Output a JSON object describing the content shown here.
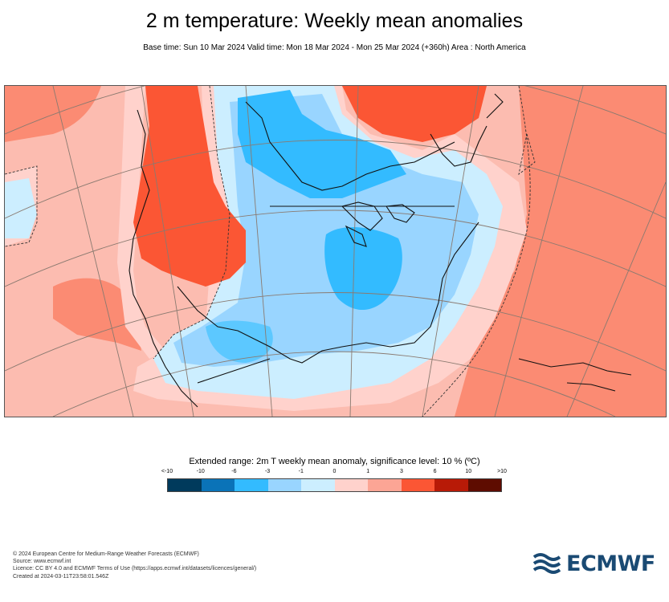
{
  "header": {
    "title": "2 m temperature: Weekly mean anomalies",
    "subtitle": "Base time: Sun 10 Mar 2024 Valid time: Mon 18 Mar 2024 - Mon 25 Mar 2024 (+360h) Area : North America"
  },
  "legend": {
    "title": "Extended range: 2m T weekly mean anomaly, significance level: 10 % (ºC)",
    "ticks": [
      "<-10",
      "-10",
      "-6",
      "-3",
      "-1",
      "0",
      "1",
      "3",
      "6",
      "10",
      ">10"
    ],
    "colors": [
      "#003a5c",
      "#0a73b8",
      "#33bbff",
      "#99d5ff",
      "#cceeff",
      "#ffd2cc",
      "#fca595",
      "#fb5634",
      "#b81a07",
      "#5e0c00"
    ]
  },
  "map_colors": {
    "ocean_warm": "#fcbcb0",
    "warm_strong": "#fb8b73",
    "hot": "#fb5634",
    "light_warm": "#ffd2cc",
    "light_cool": "#cceeff",
    "cool": "#99d5ff",
    "cold": "#33bbff",
    "coast": "#111111",
    "grid": "#8a7a70"
  },
  "footer": {
    "line1": "© 2024 European Centre for Medium-Range Weather Forecasts (ECMWF)",
    "line2": "Source: www.ecmwf.int",
    "line3": "Licence: CC BY 4.0 and ECMWF Terms of Use (https://apps.ecmwf.int/datasets/licences/general/)",
    "line4": "Created at 2024-03-11T23:58:01.546Z"
  },
  "logo": {
    "text": "ECMWF"
  }
}
